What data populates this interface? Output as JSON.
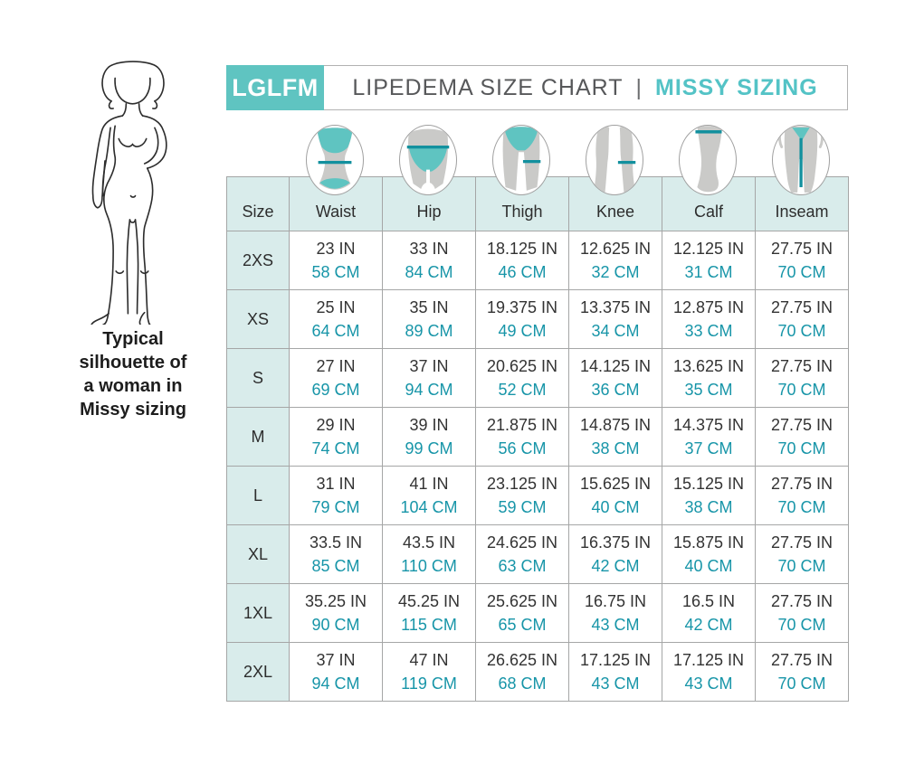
{
  "header": {
    "brand": "LGLFM",
    "title": "LIPEDEMA SIZE CHART",
    "separator": "|",
    "subtitle": "MISSY SIZING"
  },
  "left_panel": {
    "caption": "Typical\nsilhouette of\na woman in\nMissy sizing"
  },
  "icons": [
    {
      "name": "waist-icon",
      "column": "Waist"
    },
    {
      "name": "hip-icon",
      "column": "Hip"
    },
    {
      "name": "thigh-icon",
      "column": "Thigh"
    },
    {
      "name": "knee-icon",
      "column": "Knee"
    },
    {
      "name": "calf-icon",
      "column": "Calf"
    },
    {
      "name": "inseam-icon",
      "column": "Inseam"
    }
  ],
  "table": {
    "columns": [
      "Size",
      "Waist",
      "Hip",
      "Thigh",
      "Knee",
      "Calf",
      "Inseam"
    ],
    "rows": [
      {
        "size": "2XS",
        "cells": [
          {
            "in": "23 IN",
            "cm": "58 CM"
          },
          {
            "in": "33 IN",
            "cm": "84 CM"
          },
          {
            "in": "18.125 IN",
            "cm": "46 CM"
          },
          {
            "in": "12.625 IN",
            "cm": "32 CM"
          },
          {
            "in": "12.125 IN",
            "cm": "31 CM"
          },
          {
            "in": "27.75 IN",
            "cm": "70 CM"
          }
        ]
      },
      {
        "size": "XS",
        "cells": [
          {
            "in": "25 IN",
            "cm": "64 CM"
          },
          {
            "in": "35 IN",
            "cm": "89 CM"
          },
          {
            "in": "19.375 IN",
            "cm": "49 CM"
          },
          {
            "in": "13.375 IN",
            "cm": "34 CM"
          },
          {
            "in": "12.875 IN",
            "cm": "33 CM"
          },
          {
            "in": "27.75 IN",
            "cm": "70 CM"
          }
        ]
      },
      {
        "size": "S",
        "cells": [
          {
            "in": "27 IN",
            "cm": "69 CM"
          },
          {
            "in": "37 IN",
            "cm": "94 CM"
          },
          {
            "in": "20.625 IN",
            "cm": "52 CM"
          },
          {
            "in": "14.125 IN",
            "cm": "36 CM"
          },
          {
            "in": "13.625 IN",
            "cm": "35 CM"
          },
          {
            "in": "27.75 IN",
            "cm": "70 CM"
          }
        ]
      },
      {
        "size": "M",
        "cells": [
          {
            "in": "29 IN",
            "cm": "74 CM"
          },
          {
            "in": "39 IN",
            "cm": "99 CM"
          },
          {
            "in": "21.875 IN",
            "cm": "56 CM"
          },
          {
            "in": "14.875 IN",
            "cm": "38 CM"
          },
          {
            "in": "14.375 IN",
            "cm": "37 CM"
          },
          {
            "in": "27.75 IN",
            "cm": "70 CM"
          }
        ]
      },
      {
        "size": "L",
        "cells": [
          {
            "in": "31 IN",
            "cm": "79 CM"
          },
          {
            "in": "41 IN",
            "cm": "104 CM"
          },
          {
            "in": "23.125 IN",
            "cm": "59 CM"
          },
          {
            "in": "15.625 IN",
            "cm": "40 CM"
          },
          {
            "in": "15.125 IN",
            "cm": "38 CM"
          },
          {
            "in": "27.75 IN",
            "cm": "70 CM"
          }
        ]
      },
      {
        "size": "XL",
        "cells": [
          {
            "in": "33.5 IN",
            "cm": "85 CM"
          },
          {
            "in": "43.5 IN",
            "cm": "110 CM"
          },
          {
            "in": "24.625 IN",
            "cm": "63 CM"
          },
          {
            "in": "16.375 IN",
            "cm": "42 CM"
          },
          {
            "in": "15.875 IN",
            "cm": "40 CM"
          },
          {
            "in": "27.75 IN",
            "cm": "70 CM"
          }
        ]
      },
      {
        "size": "1XL",
        "cells": [
          {
            "in": "35.25 IN",
            "cm": "90 CM"
          },
          {
            "in": "45.25 IN",
            "cm": "115 CM"
          },
          {
            "in": "25.625 IN",
            "cm": "65 CM"
          },
          {
            "in": "16.75 IN",
            "cm": "43 CM"
          },
          {
            "in": "16.5 IN",
            "cm": "42 CM"
          },
          {
            "in": "27.75 IN",
            "cm": "70 CM"
          }
        ]
      },
      {
        "size": "2XL",
        "cells": [
          {
            "in": "37 IN",
            "cm": "94 CM"
          },
          {
            "in": "47 IN",
            "cm": "119 CM"
          },
          {
            "in": "26.625 IN",
            "cm": "68 CM"
          },
          {
            "in": "17.125 IN",
            "cm": "43 CM"
          },
          {
            "in": "17.125 IN",
            "cm": "43 CM"
          },
          {
            "in": "27.75 IN",
            "cm": "70 CM"
          }
        ]
      }
    ]
  },
  "colors": {
    "brand_teal": "#5fc4c1",
    "subtitle_teal": "#54c3c6",
    "measure_line_teal": "#12909e",
    "cm_text_teal": "#1795a8",
    "light_teal_bg": "#d9eceb",
    "table_border_gray": "#a5a6a6",
    "title_gray": "#57585a",
    "icon_body_gray": "#cacac8"
  }
}
